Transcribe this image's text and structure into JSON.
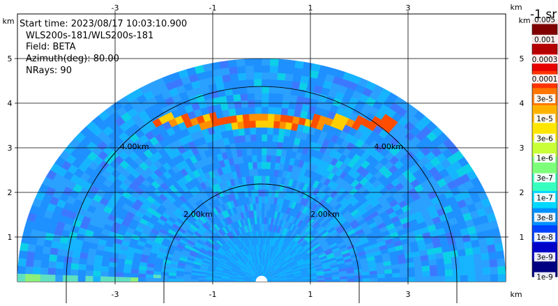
{
  "info": {
    "start_time": "Start time: 2023/08/17 10:03:10.900",
    "instrument": "WLS200s-181/WLS200s-181",
    "field": "Field: BETA",
    "azimuth": "Azimuth(deg): 80.00",
    "nrays": "NRays: 90"
  },
  "colorbar": {
    "title": "-1 sr",
    "labels": [
      "0.005",
      "0.001",
      "0.0003",
      "0.0001",
      "3e-5",
      "1e-5",
      "3e-6",
      "1e-6",
      "3e-7",
      "1e-7",
      "3e-8",
      "1e-8",
      "3e-9",
      "1e-9"
    ],
    "colors": [
      "#800000",
      "#b40000",
      "#e60000",
      "#ff3300",
      "#ff7700",
      "#ffb300",
      "#ffe600",
      "#c8ff37",
      "#7dff7a",
      "#37ffc0",
      "#00d8ff",
      "#0090ff",
      "#0040ff",
      "#0000c8",
      "#000080"
    ]
  },
  "chart_data": {
    "type": "heatmap",
    "plot_kind": "lidar RHI scan (semicircular sector)",
    "x_axis": {
      "unit_label": "km",
      "ticks": [
        "-3",
        "-1",
        "1",
        "3"
      ],
      "range": [
        -5,
        5
      ]
    },
    "y_axis": {
      "unit_label": "km",
      "ticks": [
        "1",
        "2",
        "3",
        "4",
        "5"
      ],
      "range": [
        0,
        6
      ]
    },
    "max_range_km": 5.0,
    "range_rings": [
      {
        "radius_km": 2.0,
        "label": "2.00km"
      },
      {
        "radius_km": 4.0,
        "label": "4.00km"
      }
    ],
    "grid": true,
    "field": "BETA",
    "colorscale": "log10 jet, 1e-9 to 0.005",
    "background_level": "~1e-7 to 3e-7",
    "features": [
      {
        "name": "elevated high-backscatter layer",
        "height_km": [
          3.4,
          3.7
        ],
        "x_km": [
          -2.2,
          2.5
        ],
        "peak_value": "3e-5"
      },
      {
        "name": "near-ground enhanced backscatter",
        "height_km": [
          0.0,
          0.1
        ],
        "x_km": [
          -5.0,
          -2.0
        ],
        "peak_value": "1e-6"
      }
    ]
  }
}
